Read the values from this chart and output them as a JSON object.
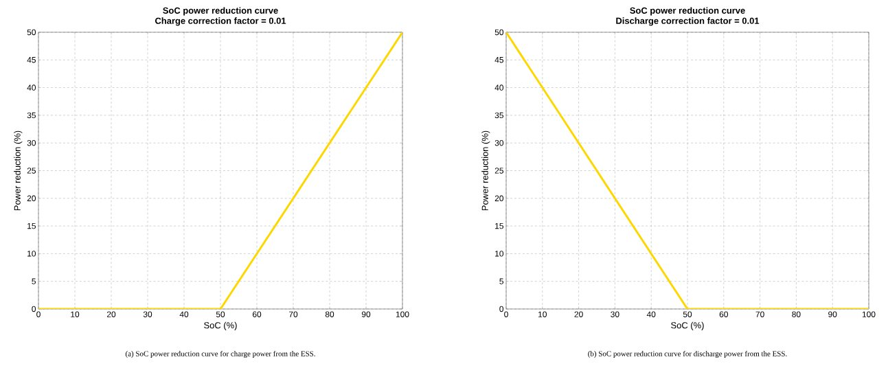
{
  "chart_data": [
    {
      "type": "line",
      "title": "SoC power reduction curve",
      "subtitle": "Charge correction factor = 0.01",
      "xlabel": "SoC (%)",
      "ylabel": "Power reduction (%)",
      "x": [
        0,
        50,
        100
      ],
      "values": [
        0,
        0,
        50
      ],
      "color": "#ffd700",
      "line_style": "solid",
      "marker": "none",
      "xlim": [
        0,
        100
      ],
      "ylim": [
        0,
        50
      ],
      "xticks": [
        0,
        10,
        20,
        30,
        40,
        50,
        60,
        70,
        80,
        90,
        100
      ],
      "yticks": [
        0,
        5,
        10,
        15,
        20,
        25,
        30,
        35,
        40,
        45,
        50
      ],
      "grid": true,
      "annotations": [
        "(a) SoC power reduction curve for charge power from the ESS."
      ]
    },
    {
      "type": "line",
      "title": "SoC power reduction curve",
      "subtitle": "Discharge correction factor = 0.01",
      "xlabel": "SoC (%)",
      "ylabel": "Power reduction (%)",
      "x": [
        0,
        50,
        100
      ],
      "values": [
        50,
        0,
        0
      ],
      "color": "#ffd700",
      "line_style": "solid",
      "marker": "none",
      "xlim": [
        0,
        100
      ],
      "ylim": [
        0,
        50
      ],
      "xticks": [
        0,
        10,
        20,
        30,
        40,
        50,
        60,
        70,
        80,
        90,
        100
      ],
      "yticks": [
        0,
        5,
        10,
        15,
        20,
        25,
        30,
        35,
        40,
        45,
        50
      ],
      "grid": true,
      "annotations": [
        "(b) SoC power reduction curve for discharge power from the ESS."
      ]
    }
  ]
}
